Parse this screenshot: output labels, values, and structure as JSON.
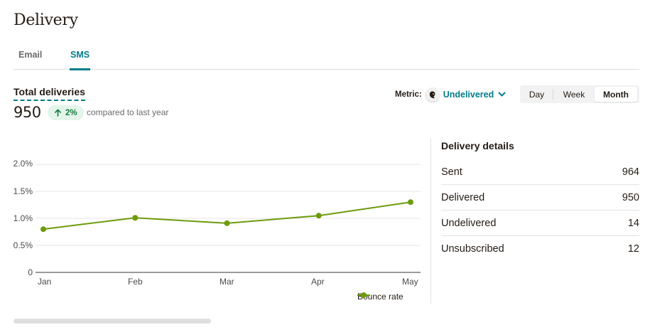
{
  "page": {
    "title": "Delivery"
  },
  "tabs": [
    {
      "label": "Email",
      "active": false
    },
    {
      "label": "SMS",
      "active": true
    }
  ],
  "summary": {
    "label": "Total deliveries",
    "value": "950",
    "change": "2%",
    "change_direction": "up",
    "compare_text": "compared to last year"
  },
  "metric": {
    "label": "Metric:",
    "selected": "Undelivered"
  },
  "period": {
    "options": [
      "Day",
      "Week",
      "Month"
    ],
    "selected": "Month"
  },
  "details": {
    "title": "Delivery details",
    "rows": [
      {
        "label": "Sent",
        "value": "964"
      },
      {
        "label": "Delivered",
        "value": "950"
      },
      {
        "label": "Undelivered",
        "value": "14"
      },
      {
        "label": "Unsubscribed",
        "value": "12"
      }
    ]
  },
  "colors": {
    "accent": "#007c89",
    "series": "#6d9b0c",
    "badge_bg": "#e3f5ea",
    "badge_text": "#1a7a3e"
  },
  "chart_data": {
    "type": "line",
    "title": "",
    "xlabel": "",
    "ylabel": "",
    "categories": [
      "Jan",
      "Feb",
      "Mar",
      "Apr",
      "May"
    ],
    "series": [
      {
        "name": "Bounce rate",
        "values": [
          0.8,
          1.01,
          0.91,
          1.05,
          1.3
        ],
        "unit": "%"
      }
    ],
    "y_ticks": [
      "0",
      "0.5%",
      "1.0%",
      "1.5%",
      "2.0%"
    ],
    "ylim": [
      0,
      2.0
    ],
    "grid": true,
    "legend_position": "bottom-right"
  }
}
